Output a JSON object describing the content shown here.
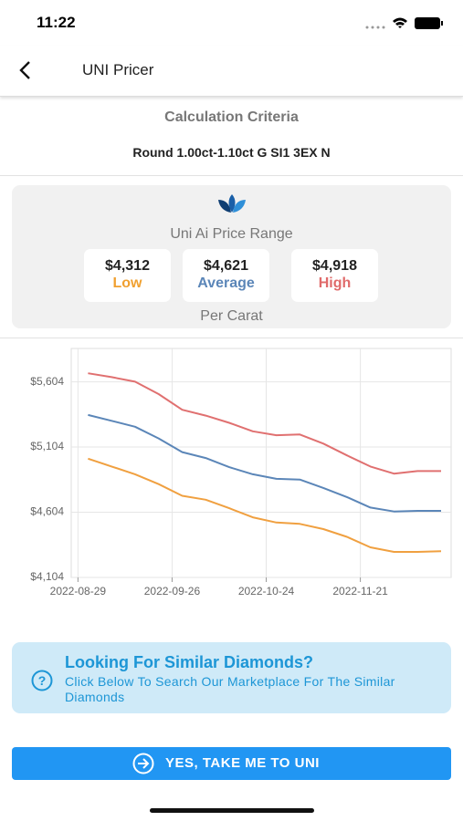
{
  "status_bar": {
    "time": "11:22"
  },
  "nav": {
    "title": "UNI Pricer"
  },
  "criteria": {
    "heading": "Calculation Criteria",
    "text": "Round 1.00ct-1.10ct G SI1 3EX N"
  },
  "price_range": {
    "title": "Uni Ai Price Range",
    "items": [
      {
        "price": "$4,312",
        "label": "Low"
      },
      {
        "price": "$4,621",
        "label": "Average"
      },
      {
        "price": "$4,918",
        "label": "High"
      }
    ],
    "footer": "Per Carat"
  },
  "chart_data": {
    "type": "line",
    "x": [
      "2022-09-01",
      "2022-09-08",
      "2022-09-15",
      "2022-09-22",
      "2022-09-29",
      "2022-10-06",
      "2022-10-13",
      "2022-10-20",
      "2022-10-27",
      "2022-11-03",
      "2022-11-10",
      "2022-11-17",
      "2022-11-24",
      "2022-12-01",
      "2022-12-08",
      "2022-12-15"
    ],
    "series": [
      {
        "color": "#e07070",
        "values": [
          5670,
          5640,
          5605,
          5510,
          5390,
          5345,
          5290,
          5225,
          5195,
          5200,
          5130,
          5040,
          4955,
          4900,
          4920,
          4920
        ]
      },
      {
        "color": "#5b86b8",
        "values": [
          5350,
          5305,
          5260,
          5170,
          5065,
          5020,
          4950,
          4895,
          4860,
          4855,
          4790,
          4720,
          4640,
          4610,
          4615,
          4615
        ]
      },
      {
        "color": "#f0a040",
        "values": [
          5015,
          4955,
          4895,
          4820,
          4730,
          4700,
          4635,
          4565,
          4525,
          4515,
          4475,
          4415,
          4335,
          4300,
          4300,
          4305
        ]
      }
    ],
    "xlim": [
      "2022-08-27",
      "2022-12-18"
    ],
    "xticks": [
      "2022-08-29",
      "2022-09-26",
      "2022-10-24",
      "2022-11-21"
    ],
    "ylim": [
      4104,
      5860
    ],
    "yticks": [
      {
        "value": 4104,
        "label": "$4,104"
      },
      {
        "value": 4604,
        "label": "$4,604"
      },
      {
        "value": 5104,
        "label": "$5,104"
      },
      {
        "value": 5604,
        "label": "$5,604"
      }
    ],
    "grid": true
  },
  "banner": {
    "title": "Looking For Similar Diamonds?",
    "text": "Click Below To Search Our Marketplace For The Similar Diamonds"
  },
  "button": {
    "label": "YES, TAKE ME TO UNI"
  }
}
